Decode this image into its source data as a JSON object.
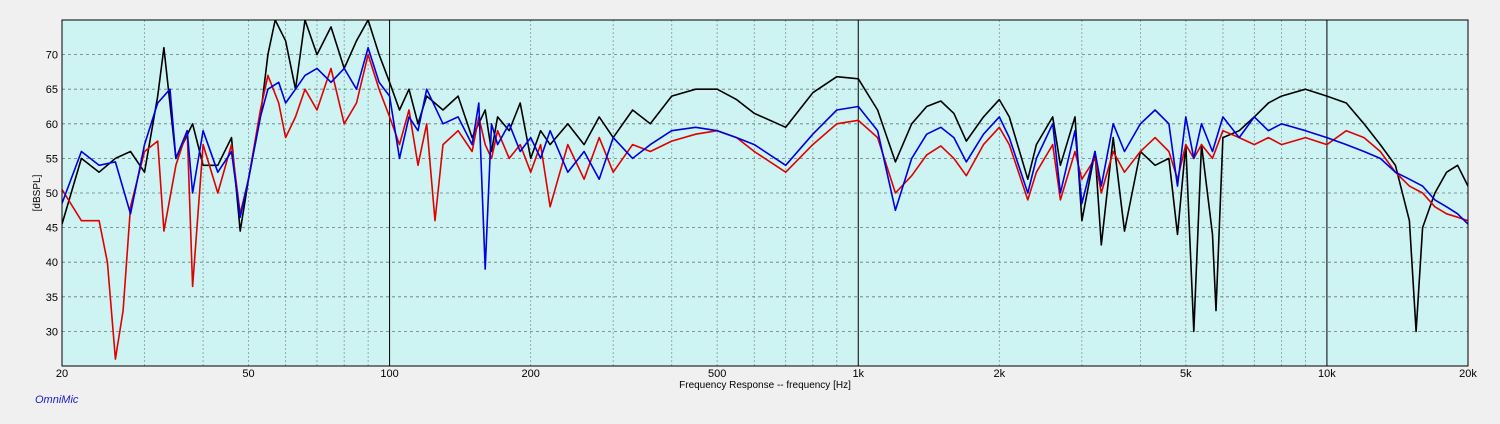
{
  "app": {
    "brand": "OmniMic"
  },
  "chart_data": {
    "type": "line",
    "title": "",
    "xlabel": "Frequency Response -- frequency [Hz]",
    "ylabel": "[dBSPL]",
    "xscale": "log",
    "xlim": [
      20,
      20000
    ],
    "ylim": [
      25,
      75
    ],
    "grid": true,
    "background": "#cdf3f3",
    "x_ticks": [
      {
        "value": 20,
        "label": "20"
      },
      {
        "value": 50,
        "label": "50"
      },
      {
        "value": 100,
        "label": "100"
      },
      {
        "value": 200,
        "label": "200"
      },
      {
        "value": 500,
        "label": "500"
      },
      {
        "value": 1000,
        "label": "1k"
      },
      {
        "value": 2000,
        "label": "2k"
      },
      {
        "value": 5000,
        "label": "5k"
      },
      {
        "value": 10000,
        "label": "10k"
      },
      {
        "value": 20000,
        "label": "20k"
      }
    ],
    "y_ticks": [
      30,
      35,
      40,
      45,
      50,
      55,
      60,
      65,
      70
    ],
    "series": [
      {
        "color": "#000000",
        "points": [
          [
            20,
            45.5
          ],
          [
            22,
            55
          ],
          [
            24,
            53
          ],
          [
            26,
            55
          ],
          [
            28,
            56
          ],
          [
            30,
            53
          ],
          [
            32,
            64
          ],
          [
            33,
            71
          ],
          [
            35,
            55
          ],
          [
            38,
            60
          ],
          [
            40,
            54
          ],
          [
            43,
            54
          ],
          [
            46,
            58
          ],
          [
            48,
            44.5
          ],
          [
            50,
            52
          ],
          [
            53,
            61
          ],
          [
            55,
            70
          ],
          [
            57,
            75
          ],
          [
            60,
            72
          ],
          [
            63,
            65
          ],
          [
            66,
            75
          ],
          [
            70,
            70
          ],
          [
            75,
            74
          ],
          [
            80,
            68
          ],
          [
            85,
            72
          ],
          [
            90,
            75
          ],
          [
            95,
            70
          ],
          [
            100,
            66
          ],
          [
            105,
            62
          ],
          [
            110,
            65
          ],
          [
            115,
            60
          ],
          [
            120,
            64
          ],
          [
            130,
            62
          ],
          [
            140,
            64
          ],
          [
            150,
            58
          ],
          [
            160,
            62
          ],
          [
            165,
            56
          ],
          [
            170,
            61
          ],
          [
            180,
            59
          ],
          [
            190,
            63
          ],
          [
            200,
            55
          ],
          [
            210,
            59
          ],
          [
            220,
            57
          ],
          [
            240,
            60
          ],
          [
            260,
            57
          ],
          [
            280,
            61
          ],
          [
            300,
            58
          ],
          [
            330,
            62
          ],
          [
            360,
            60
          ],
          [
            400,
            64
          ],
          [
            450,
            65
          ],
          [
            500,
            65
          ],
          [
            550,
            63.5
          ],
          [
            600,
            61.5
          ],
          [
            700,
            59.5
          ],
          [
            800,
            64.5
          ],
          [
            900,
            66.8
          ],
          [
            1000,
            66.5
          ],
          [
            1100,
            62
          ],
          [
            1200,
            54.5
          ],
          [
            1300,
            60
          ],
          [
            1400,
            62.5
          ],
          [
            1500,
            63.3
          ],
          [
            1600,
            61.5
          ],
          [
            1700,
            57.5
          ],
          [
            1850,
            61
          ],
          [
            2000,
            63.5
          ],
          [
            2100,
            61
          ],
          [
            2300,
            52
          ],
          [
            2400,
            57
          ],
          [
            2600,
            61
          ],
          [
            2700,
            54
          ],
          [
            2900,
            61
          ],
          [
            3000,
            46
          ],
          [
            3200,
            56
          ],
          [
            3300,
            42.5
          ],
          [
            3500,
            58
          ],
          [
            3700,
            44.5
          ],
          [
            4000,
            56
          ],
          [
            4300,
            54
          ],
          [
            4600,
            55
          ],
          [
            4800,
            44
          ],
          [
            5000,
            57
          ],
          [
            5200,
            30
          ],
          [
            5400,
            57
          ],
          [
            5700,
            44
          ],
          [
            5800,
            33
          ],
          [
            6000,
            58
          ],
          [
            6500,
            59
          ],
          [
            7000,
            61
          ],
          [
            7500,
            63
          ],
          [
            8000,
            64
          ],
          [
            9000,
            65
          ],
          [
            10000,
            64
          ],
          [
            11000,
            63
          ],
          [
            12000,
            60
          ],
          [
            13000,
            57
          ],
          [
            14000,
            54
          ],
          [
            15000,
            46
          ],
          [
            15500,
            30
          ],
          [
            16000,
            45
          ],
          [
            17000,
            50
          ],
          [
            18000,
            53
          ],
          [
            19000,
            54
          ],
          [
            20000,
            51
          ]
        ]
      },
      {
        "color": "#e00000",
        "points": [
          [
            20,
            50.5
          ],
          [
            22,
            46
          ],
          [
            24,
            46
          ],
          [
            25,
            40
          ],
          [
            26,
            26
          ],
          [
            27,
            33
          ],
          [
            28,
            48
          ],
          [
            30,
            56
          ],
          [
            32,
            57.5
          ],
          [
            33,
            44.5
          ],
          [
            35,
            54
          ],
          [
            37,
            59
          ],
          [
            38,
            36.5
          ],
          [
            40,
            57
          ],
          [
            43,
            50
          ],
          [
            46,
            57
          ],
          [
            48,
            47
          ],
          [
            50,
            52
          ],
          [
            53,
            62
          ],
          [
            55,
            67
          ],
          [
            58,
            63
          ],
          [
            60,
            58
          ],
          [
            63,
            61
          ],
          [
            66,
            65
          ],
          [
            70,
            62
          ],
          [
            75,
            68
          ],
          [
            80,
            60
          ],
          [
            85,
            63
          ],
          [
            90,
            70
          ],
          [
            95,
            65
          ],
          [
            100,
            61
          ],
          [
            105,
            57
          ],
          [
            110,
            62
          ],
          [
            115,
            54
          ],
          [
            120,
            60
          ],
          [
            125,
            46
          ],
          [
            130,
            57
          ],
          [
            140,
            59
          ],
          [
            150,
            56
          ],
          [
            155,
            61
          ],
          [
            160,
            57
          ],
          [
            165,
            55
          ],
          [
            170,
            59
          ],
          [
            180,
            55
          ],
          [
            190,
            57
          ],
          [
            200,
            53
          ],
          [
            210,
            57
          ],
          [
            220,
            48
          ],
          [
            240,
            57
          ],
          [
            260,
            52
          ],
          [
            280,
            58
          ],
          [
            300,
            53
          ],
          [
            330,
            57
          ],
          [
            360,
            56
          ],
          [
            400,
            57.5
          ],
          [
            450,
            58.5
          ],
          [
            500,
            59
          ],
          [
            550,
            58
          ],
          [
            600,
            56
          ],
          [
            700,
            53
          ],
          [
            800,
            57
          ],
          [
            900,
            60
          ],
          [
            1000,
            60.5
          ],
          [
            1100,
            58
          ],
          [
            1200,
            50
          ],
          [
            1300,
            52.5
          ],
          [
            1400,
            55.5
          ],
          [
            1500,
            56.8
          ],
          [
            1600,
            55
          ],
          [
            1700,
            52.5
          ],
          [
            1850,
            57
          ],
          [
            2000,
            59.5
          ],
          [
            2100,
            57
          ],
          [
            2300,
            49
          ],
          [
            2400,
            53
          ],
          [
            2600,
            57
          ],
          [
            2700,
            49
          ],
          [
            2900,
            56
          ],
          [
            3000,
            52
          ],
          [
            3200,
            55
          ],
          [
            3300,
            50
          ],
          [
            3500,
            56
          ],
          [
            3700,
            53
          ],
          [
            4000,
            56
          ],
          [
            4300,
            58
          ],
          [
            4600,
            56
          ],
          [
            4800,
            52
          ],
          [
            5000,
            57
          ],
          [
            5200,
            55
          ],
          [
            5400,
            57
          ],
          [
            5700,
            55
          ],
          [
            6000,
            59
          ],
          [
            6500,
            58
          ],
          [
            7000,
            57
          ],
          [
            7500,
            58
          ],
          [
            8000,
            57
          ],
          [
            9000,
            58
          ],
          [
            10000,
            57
          ],
          [
            11000,
            59
          ],
          [
            12000,
            58
          ],
          [
            13000,
            56
          ],
          [
            14000,
            53
          ],
          [
            15000,
            51
          ],
          [
            16000,
            50
          ],
          [
            17000,
            48
          ],
          [
            18000,
            47
          ],
          [
            19000,
            46.5
          ],
          [
            20000,
            46
          ]
        ]
      },
      {
        "color": "#0000e0",
        "points": [
          [
            20,
            48.5
          ],
          [
            22,
            56
          ],
          [
            24,
            54
          ],
          [
            26,
            54.5
          ],
          [
            28,
            47
          ],
          [
            30,
            57
          ],
          [
            32,
            63
          ],
          [
            34,
            65
          ],
          [
            35,
            55
          ],
          [
            37,
            59
          ],
          [
            38,
            50
          ],
          [
            40,
            59
          ],
          [
            43,
            53
          ],
          [
            46,
            56
          ],
          [
            48,
            46.5
          ],
          [
            50,
            52
          ],
          [
            53,
            61
          ],
          [
            55,
            65
          ],
          [
            58,
            66
          ],
          [
            60,
            63
          ],
          [
            63,
            65
          ],
          [
            66,
            67
          ],
          [
            70,
            68
          ],
          [
            75,
            66
          ],
          [
            80,
            68
          ],
          [
            85,
            65
          ],
          [
            90,
            71
          ],
          [
            95,
            66
          ],
          [
            100,
            64
          ],
          [
            105,
            55
          ],
          [
            110,
            61
          ],
          [
            115,
            59
          ],
          [
            120,
            65
          ],
          [
            130,
            60
          ],
          [
            140,
            61
          ],
          [
            150,
            57
          ],
          [
            155,
            63
          ],
          [
            160,
            39
          ],
          [
            165,
            60
          ],
          [
            170,
            57
          ],
          [
            180,
            60
          ],
          [
            190,
            56
          ],
          [
            200,
            58
          ],
          [
            210,
            55
          ],
          [
            220,
            59
          ],
          [
            240,
            53
          ],
          [
            260,
            56
          ],
          [
            280,
            52
          ],
          [
            300,
            58
          ],
          [
            330,
            55
          ],
          [
            360,
            57
          ],
          [
            400,
            59
          ],
          [
            450,
            59.5
          ],
          [
            500,
            59
          ],
          [
            550,
            58
          ],
          [
            600,
            57
          ],
          [
            700,
            54
          ],
          [
            800,
            58.5
          ],
          [
            900,
            62
          ],
          [
            1000,
            62.5
          ],
          [
            1100,
            59
          ],
          [
            1200,
            47.5
          ],
          [
            1300,
            55
          ],
          [
            1400,
            58.5
          ],
          [
            1500,
            59.5
          ],
          [
            1600,
            58
          ],
          [
            1700,
            54.5
          ],
          [
            1850,
            58.5
          ],
          [
            2000,
            61
          ],
          [
            2100,
            58
          ],
          [
            2300,
            50
          ],
          [
            2400,
            55
          ],
          [
            2600,
            60
          ],
          [
            2700,
            50
          ],
          [
            2900,
            59
          ],
          [
            3000,
            48.5
          ],
          [
            3200,
            56
          ],
          [
            3300,
            51
          ],
          [
            3500,
            60
          ],
          [
            3700,
            56
          ],
          [
            4000,
            60
          ],
          [
            4300,
            62
          ],
          [
            4600,
            60
          ],
          [
            4800,
            51
          ],
          [
            5000,
            61
          ],
          [
            5200,
            55
          ],
          [
            5400,
            60
          ],
          [
            5700,
            56
          ],
          [
            6000,
            61
          ],
          [
            6500,
            58
          ],
          [
            7000,
            61
          ],
          [
            7500,
            59
          ],
          [
            8000,
            60
          ],
          [
            9000,
            59
          ],
          [
            10000,
            58
          ],
          [
            11000,
            57
          ],
          [
            12000,
            56
          ],
          [
            13000,
            55
          ],
          [
            14000,
            53
          ],
          [
            15000,
            52
          ],
          [
            16000,
            51
          ],
          [
            17000,
            49
          ],
          [
            18000,
            48
          ],
          [
            19000,
            47
          ],
          [
            20000,
            45.5
          ]
        ]
      }
    ]
  }
}
